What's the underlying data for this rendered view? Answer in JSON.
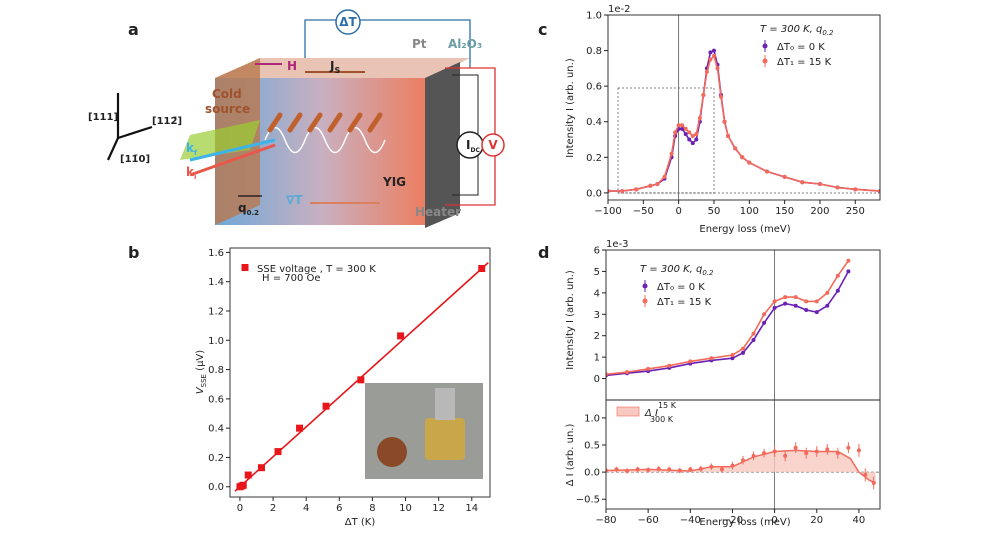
{
  "panel_labels": [
    "a",
    "b",
    "c",
    "d"
  ],
  "diagram": {
    "delta_t": "ΔT",
    "pt": "Pt",
    "al2o3": "Al₂O₃",
    "h": "H",
    "js": {
      "text": "J",
      "sub": "S"
    },
    "cold_source": [
      "Cold",
      "source"
    ],
    "idc": {
      "text": "I",
      "sub": "DC"
    },
    "v": "V",
    "kf": {
      "text": "k",
      "sub": "f"
    },
    "ki": {
      "text": "k",
      "sub": "i"
    },
    "yig": "YIG",
    "q": {
      "text": "q",
      "sub": "0.2"
    },
    "grad_t": "∇T",
    "heater": "Heater",
    "directions": [
      "[111]",
      "[112̄]",
      "[11̄0]"
    ]
  },
  "chart_data": [
    {
      "type": "scatter",
      "x_label": "ΔT (K)",
      "y_label": {
        "text": "V",
        "sub": "SSE",
        "rest": " (μV)"
      },
      "legend_note": "H = 700 Oe",
      "xlim": [
        -0.6,
        15.1
      ],
      "ylim": [
        -0.07,
        1.63
      ],
      "xticks": [
        0,
        2,
        4,
        6,
        8,
        10,
        12,
        14
      ],
      "yticks": [
        {
          "value": 0,
          "label": "0.0"
        },
        0.2,
        0.4,
        0.6,
        0.8,
        {
          "value": 1,
          "label": "1.0"
        },
        1.2,
        1.4,
        1.6
      ],
      "series": [
        {
          "name": "SSE voltage , T = 300 K",
          "color": "#e8161b",
          "marker": "square",
          "x": [
            0,
            0.1,
            0.2,
            0.5,
            1.3,
            2.3,
            3.6,
            5.2,
            7.3,
            9.7,
            14.6
          ],
          "values": [
            0,
            0.005,
            0.01,
            0.08,
            0.13,
            0.24,
            0.4,
            0.55,
            0.73,
            1.03,
            1.49
          ]
        },
        {
          "color": "#e8161b",
          "style": "line",
          "x": [
            -0.3,
            15
          ],
          "values": [
            -0.03,
            1.53
          ]
        }
      ]
    },
    {
      "type": "line",
      "x_label": "Energy loss (meV)",
      "y_label": "Intensity I (arb. un.)",
      "offset_label": "1e-2",
      "legend_title": {
        "text": "T = 300 K, q",
        "sub": "0.2"
      },
      "xlim": [
        -100,
        285
      ],
      "ylim": [
        -0.04,
        1.0
      ],
      "vline": 0,
      "xticks": [
        {
          "value": -100,
          "label": "−100"
        },
        {
          "value": -50,
          "label": "−50"
        },
        0,
        50,
        100,
        150,
        200,
        250
      ],
      "yticks": [
        {
          "value": 0,
          "label": "0.0"
        },
        0.2,
        0.4,
        0.6,
        0.8,
        {
          "value": 1,
          "label": "1.0"
        }
      ],
      "series": [
        {
          "name": "ΔT₀ = 0 K",
          "color": "#6a22b5",
          "style": "line",
          "marker": "dot",
          "x": [
            -100,
            -80,
            -60,
            -40,
            -30,
            -20,
            -10,
            -5,
            0,
            5,
            10,
            15,
            20,
            25,
            30,
            35,
            40,
            45,
            50,
            55,
            60,
            65,
            70,
            80,
            90,
            100,
            125,
            150,
            175,
            200,
            225,
            250,
            285
          ],
          "values": [
            0.01,
            0.01,
            0.02,
            0.04,
            0.05,
            0.08,
            0.2,
            0.32,
            0.36,
            0.36,
            0.33,
            0.3,
            0.28,
            0.3,
            0.4,
            0.55,
            0.7,
            0.79,
            0.8,
            0.72,
            0.55,
            0.4,
            0.32,
            0.25,
            0.2,
            0.17,
            0.12,
            0.09,
            0.06,
            0.05,
            0.03,
            0.02,
            0.01
          ]
        },
        {
          "name": "ΔT₁ = 15 K",
          "color": "#f36a5a",
          "style": "line",
          "marker": "dot",
          "x": [
            -100,
            -80,
            -60,
            -40,
            -30,
            -20,
            -10,
            -5,
            0,
            5,
            10,
            15,
            20,
            25,
            30,
            35,
            40,
            45,
            50,
            55,
            60,
            65,
            70,
            80,
            90,
            100,
            125,
            150,
            175,
            200,
            225,
            250,
            285
          ],
          "values": [
            0.01,
            0.01,
            0.02,
            0.04,
            0.05,
            0.09,
            0.22,
            0.34,
            0.38,
            0.38,
            0.36,
            0.34,
            0.32,
            0.33,
            0.42,
            0.55,
            0.68,
            0.75,
            0.77,
            0.7,
            0.54,
            0.4,
            0.32,
            0.25,
            0.2,
            0.17,
            0.12,
            0.09,
            0.06,
            0.05,
            0.03,
            0.02,
            0.01
          ]
        }
      ]
    },
    {
      "type": "line",
      "y_label": "Intensity I (arb. un.)",
      "offset_label": "1e-3",
      "legend_title": {
        "text": "T = 300 K, q",
        "sub": "0.2"
      },
      "xlim": [
        -80,
        50
      ],
      "ylim": [
        -1,
        6
      ],
      "vline": 0,
      "yticks": [
        0,
        1,
        2,
        3,
        4,
        5,
        6
      ],
      "series": [
        {
          "name": "ΔT₀ = 0 K",
          "color": "#6a22b5",
          "style": "line",
          "marker": "dot",
          "x": [
            -80,
            -70,
            -60,
            -50,
            -40,
            -30,
            -20,
            -15,
            -10,
            -5,
            0,
            5,
            10,
            15,
            20,
            25,
            30,
            35
          ],
          "values": [
            0.15,
            0.25,
            0.35,
            0.5,
            0.7,
            0.85,
            0.95,
            1.2,
            1.8,
            2.6,
            3.3,
            3.5,
            3.4,
            3.2,
            3.1,
            3.4,
            4.1,
            5.0
          ]
        },
        {
          "name": "ΔT₁ = 15 K",
          "color": "#f36a5a",
          "style": "line",
          "marker": "dot",
          "x": [
            -80,
            -70,
            -60,
            -50,
            -40,
            -30,
            -20,
            -15,
            -10,
            -5,
            0,
            5,
            10,
            15,
            20,
            25,
            30,
            35
          ],
          "values": [
            0.2,
            0.3,
            0.45,
            0.6,
            0.8,
            0.95,
            1.1,
            1.4,
            2.1,
            3.0,
            3.6,
            3.8,
            3.8,
            3.6,
            3.6,
            4.0,
            4.8,
            5.5
          ]
        }
      ]
    },
    {
      "type": "line",
      "x_label": "Energy loss (meV)",
      "y_label": "Δ I (arb. un.)",
      "legend_name": {
        "text": "Δ I",
        "sup": "15 K",
        "sub": "300 K"
      },
      "xlim": [
        -80,
        50
      ],
      "ylim": [
        -0.68,
        1.33
      ],
      "vline": 0,
      "hline": 0,
      "xticks": [
        {
          "value": -80,
          "label": "−80"
        },
        {
          "value": -60,
          "label": "−60"
        },
        {
          "value": -40,
          "label": "−40"
        },
        {
          "value": -20,
          "label": "−20"
        },
        0,
        20,
        40
      ],
      "yticks": [
        {
          "value": -0.5,
          "label": "−0.5"
        },
        {
          "value": 0,
          "label": "0.0"
        },
        0.5,
        {
          "value": 1,
          "label": "1.0"
        }
      ],
      "series": [
        {
          "color": "#f36a5a",
          "style": "fill",
          "fill": "#f8c9c1",
          "x": [
            -80,
            -60,
            -40,
            -30,
            -20,
            -10,
            0,
            10,
            20,
            30,
            36,
            40,
            45,
            48
          ],
          "values": [
            0.03,
            0.05,
            0.02,
            0.1,
            0.1,
            0.28,
            0.38,
            0.4,
            0.38,
            0.38,
            0.25,
            0,
            -0.15,
            -0.2
          ]
        },
        {
          "color": "#f36a5a",
          "marker": "dot",
          "x": [
            -80,
            -75,
            -70,
            -65,
            -60,
            -55,
            -50,
            -45,
            -40,
            -35,
            -30,
            -25,
            -20,
            -15,
            -10,
            -5,
            0,
            5,
            10,
            15,
            20,
            25,
            30,
            35,
            40,
            43,
            47
          ],
          "values": [
            0.03,
            0.05,
            0.02,
            0.05,
            0.04,
            0.06,
            0.05,
            0.03,
            0.05,
            0.06,
            0.1,
            0.05,
            0.12,
            0.22,
            0.3,
            0.35,
            0.38,
            0.3,
            0.45,
            0.35,
            0.38,
            0.42,
            0.35,
            0.45,
            0.4,
            -0.05,
            -0.2
          ],
          "errors": [
            0.05,
            0.05,
            0.05,
            0.05,
            0.05,
            0.05,
            0.05,
            0.05,
            0.05,
            0.06,
            0.06,
            0.06,
            0.07,
            0.08,
            0.08,
            0.08,
            0.1,
            0.1,
            0.1,
            0.1,
            0.1,
            0.1,
            0.1,
            0.1,
            0.12,
            0.12,
            0.12
          ]
        }
      ]
    }
  ]
}
